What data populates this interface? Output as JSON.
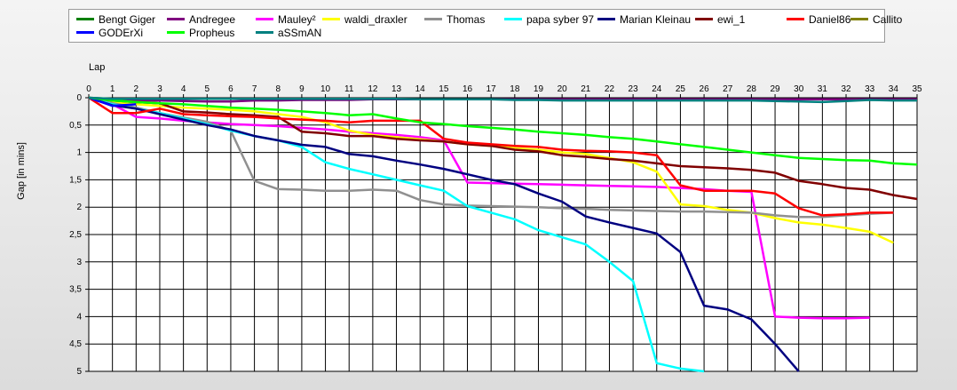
{
  "chart_data": {
    "type": "line",
    "xlabel": "Lap",
    "ylabel": "Gap [in mins]",
    "xlim": [
      0,
      35
    ],
    "ylim": [
      0,
      5
    ],
    "x_ticks": [
      "0",
      "1",
      "2",
      "3",
      "4",
      "5",
      "6",
      "7",
      "8",
      "9",
      "10",
      "11",
      "12",
      "13",
      "14",
      "15",
      "16",
      "17",
      "18",
      "19",
      "20",
      "21",
      "22",
      "23",
      "24",
      "25",
      "26",
      "27",
      "28",
      "29",
      "30",
      "31",
      "32",
      "33",
      "34",
      "35"
    ],
    "y_ticks": [
      "0",
      "0,5",
      "1",
      "1,5",
      "2",
      "2,5",
      "3",
      "3,5",
      "4",
      "4,5",
      "5"
    ],
    "grid": true,
    "legend_position": "top",
    "series": [
      {
        "name": "Bengt Giger",
        "color": "#008000",
        "x": [
          0,
          1
        ],
        "y": [
          0,
          0.02
        ]
      },
      {
        "name": "Andregee",
        "color": "#800080",
        "x": [
          0,
          1,
          2,
          3,
          4,
          5,
          6,
          7,
          8,
          9,
          10,
          11,
          12,
          13,
          14,
          15,
          16,
          17,
          18,
          19,
          20,
          21,
          22,
          23,
          24,
          25,
          26,
          27,
          28,
          29,
          30,
          31,
          32,
          33,
          34,
          35
        ],
        "y": [
          0,
          0.05,
          0.05,
          0.05,
          0.06,
          0.07,
          0.07,
          0.05,
          0.05,
          0.04,
          0.04,
          0.04,
          0.03,
          0.03,
          0.03,
          0.03,
          0.03,
          0.03,
          0.03,
          0.03,
          0.03,
          0.03,
          0.03,
          0.03,
          0.03,
          0.03,
          0.03,
          0.03,
          0.03,
          0.03,
          0.03,
          0.03,
          0.03,
          0.03,
          0.03,
          0.03
        ]
      },
      {
        "name": "Mauley²",
        "color": "#ff00ff",
        "x": [
          0,
          1,
          2,
          3,
          4,
          5,
          6,
          7,
          8,
          9,
          10,
          11,
          12,
          13,
          14,
          15,
          16,
          17,
          18,
          19,
          20,
          21,
          22,
          23,
          24,
          25,
          26,
          27,
          28,
          29,
          30,
          31,
          32,
          33
        ],
        "y": [
          0,
          0.12,
          0.35,
          0.38,
          0.42,
          0.45,
          0.48,
          0.5,
          0.52,
          0.55,
          0.58,
          0.62,
          0.65,
          0.68,
          0.72,
          0.78,
          1.55,
          1.56,
          1.57,
          1.58,
          1.59,
          1.6,
          1.61,
          1.62,
          1.63,
          1.65,
          1.67,
          1.7,
          1.72,
          4.0,
          4.02,
          4.03,
          4.03,
          4.02
        ]
      },
      {
        "name": "waldi_draxler",
        "color": "#ffff00",
        "x": [
          0,
          1,
          2,
          3,
          4,
          5,
          6,
          7,
          8,
          9,
          10,
          11,
          12,
          13,
          14,
          15,
          16,
          17,
          18,
          19,
          20,
          21,
          22,
          23,
          24,
          25,
          26,
          27,
          28,
          29,
          30,
          31,
          32,
          33,
          34
        ],
        "y": [
          0,
          0.08,
          0.12,
          0.15,
          0.18,
          0.2,
          0.22,
          0.25,
          0.3,
          0.35,
          0.45,
          0.6,
          0.68,
          0.72,
          0.76,
          0.8,
          0.85,
          0.88,
          0.92,
          0.95,
          1.0,
          1.03,
          1.1,
          1.18,
          1.35,
          1.95,
          1.98,
          2.05,
          2.1,
          2.2,
          2.28,
          2.32,
          2.38,
          2.45,
          2.65
        ]
      },
      {
        "name": "Thomas",
        "color": "#909090",
        "x": [
          0,
          1,
          2,
          3,
          4,
          5,
          6,
          7,
          8,
          9,
          10,
          11,
          12,
          13,
          14,
          15,
          16,
          17,
          18,
          19,
          20,
          21,
          22,
          23,
          24,
          25,
          26,
          27,
          28,
          29,
          30,
          31,
          32,
          33,
          34
        ],
        "y": [
          0,
          0.1,
          0.18,
          0.28,
          0.36,
          0.44,
          0.6,
          1.52,
          1.67,
          1.68,
          1.7,
          1.7,
          1.68,
          1.7,
          1.87,
          1.95,
          1.97,
          1.98,
          1.99,
          2.0,
          2.02,
          2.03,
          2.05,
          2.06,
          2.07,
          2.08,
          2.08,
          2.09,
          2.1,
          2.15,
          2.18,
          2.18,
          2.15,
          2.12,
          2.1
        ]
      },
      {
        "name": "papa syber 97",
        "color": "#00ffff",
        "x": [
          0,
          1,
          2,
          3,
          4,
          5,
          6,
          7,
          8,
          9,
          10,
          11,
          12,
          13,
          14,
          15,
          16,
          17,
          18,
          19,
          20,
          21,
          22,
          23,
          24,
          25,
          26
        ],
        "y": [
          0,
          0.12,
          0.2,
          0.28,
          0.38,
          0.48,
          0.6,
          0.7,
          0.78,
          0.9,
          1.18,
          1.3,
          1.4,
          1.5,
          1.6,
          1.7,
          1.98,
          2.1,
          2.22,
          2.42,
          2.55,
          2.68,
          3.0,
          3.35,
          4.85,
          4.95,
          5.0
        ]
      },
      {
        "name": "Marian Kleinau",
        "color": "#000080",
        "x": [
          0,
          1,
          2,
          3,
          4,
          5,
          6,
          7,
          8,
          9,
          10,
          11,
          12,
          13,
          14,
          15,
          16,
          17,
          18,
          19,
          20,
          21,
          22,
          23,
          24,
          25,
          26,
          27,
          28,
          29,
          30
        ],
        "y": [
          0,
          0.14,
          0.2,
          0.3,
          0.4,
          0.5,
          0.58,
          0.7,
          0.78,
          0.86,
          0.9,
          1.03,
          1.07,
          1.15,
          1.22,
          1.3,
          1.4,
          1.5,
          1.58,
          1.75,
          1.9,
          2.17,
          2.28,
          2.38,
          2.48,
          2.82,
          3.8,
          3.87,
          4.05,
          4.5,
          5.0
        ]
      },
      {
        "name": "ewi_1",
        "color": "#800000",
        "x": [
          0,
          1,
          2,
          3,
          4,
          5,
          6,
          7,
          8,
          9,
          10,
          11,
          12,
          13,
          14,
          15,
          16,
          17,
          18,
          19,
          20,
          21,
          22,
          23,
          24,
          25,
          26,
          27,
          28,
          29,
          30,
          31,
          32,
          33,
          34,
          35
        ],
        "y": [
          0,
          0.05,
          0.08,
          0.1,
          0.25,
          0.27,
          0.3,
          0.32,
          0.35,
          0.62,
          0.65,
          0.7,
          0.7,
          0.75,
          0.78,
          0.8,
          0.85,
          0.88,
          0.95,
          0.98,
          1.05,
          1.08,
          1.12,
          1.15,
          1.2,
          1.25,
          1.27,
          1.29,
          1.32,
          1.37,
          1.52,
          1.58,
          1.65,
          1.68,
          1.78,
          1.85
        ]
      },
      {
        "name": "Daniel86",
        "color": "#ff0000",
        "x": [
          0,
          1,
          2,
          3,
          4,
          5,
          6,
          7,
          8,
          9,
          10,
          11,
          12,
          13,
          14,
          15,
          16,
          17,
          18,
          19,
          20,
          21,
          22,
          23,
          24,
          25,
          26,
          27,
          28,
          29,
          30,
          31,
          32,
          33,
          34
        ],
        "y": [
          0,
          0.28,
          0.28,
          0.2,
          0.3,
          0.32,
          0.34,
          0.35,
          0.38,
          0.4,
          0.42,
          0.45,
          0.42,
          0.42,
          0.42,
          0.75,
          0.82,
          0.85,
          0.88,
          0.9,
          0.95,
          0.97,
          0.98,
          1.0,
          1.05,
          1.6,
          1.7,
          1.7,
          1.7,
          1.75,
          2.02,
          2.15,
          2.13,
          2.1,
          2.1
        ]
      },
      {
        "name": "Callito",
        "color": "#808000",
        "x": [
          0,
          1,
          2,
          3
        ],
        "y": [
          0,
          0.05,
          0.08,
          0.1
        ]
      },
      {
        "name": "GODErXi",
        "color": "#0000ff",
        "x": [
          0,
          1,
          2
        ],
        "y": [
          0,
          0.15,
          0.12
        ]
      },
      {
        "name": "Propheus",
        "color": "#00ff00",
        "x": [
          0,
          1,
          2,
          3,
          4,
          5,
          6,
          7,
          8,
          9,
          10,
          11,
          12,
          13,
          14,
          15,
          16,
          17,
          18,
          19,
          20,
          21,
          22,
          23,
          24,
          25,
          26,
          27,
          28,
          29,
          30,
          31,
          32,
          33,
          34,
          35
        ],
        "y": [
          0,
          0.05,
          0.08,
          0.1,
          0.12,
          0.15,
          0.18,
          0.2,
          0.22,
          0.25,
          0.28,
          0.32,
          0.3,
          0.38,
          0.45,
          0.48,
          0.52,
          0.55,
          0.58,
          0.62,
          0.65,
          0.68,
          0.72,
          0.75,
          0.8,
          0.85,
          0.9,
          0.95,
          1.0,
          1.05,
          1.1,
          1.12,
          1.14,
          1.15,
          1.2,
          1.22
        ]
      },
      {
        "name": "aSSmAN",
        "color": "#008080",
        "x": [
          0,
          1,
          2,
          3,
          4,
          5,
          6,
          7,
          8,
          9,
          10,
          11,
          12,
          13,
          14,
          15,
          16,
          17,
          18,
          19,
          20,
          21,
          22,
          23,
          24,
          25,
          26,
          27,
          28,
          29,
          30,
          31,
          32,
          33,
          34,
          35
        ],
        "y": [
          0,
          0.02,
          0.02,
          0.02,
          0.02,
          0.02,
          0.02,
          0.02,
          0.02,
          0.02,
          0.02,
          0.02,
          0.02,
          0.02,
          0.03,
          0.03,
          0.03,
          0.03,
          0.04,
          0.04,
          0.05,
          0.05,
          0.05,
          0.05,
          0.05,
          0.05,
          0.05,
          0.05,
          0.05,
          0.06,
          0.07,
          0.08,
          0.06,
          0.04,
          0.05,
          0.05
        ]
      }
    ]
  }
}
